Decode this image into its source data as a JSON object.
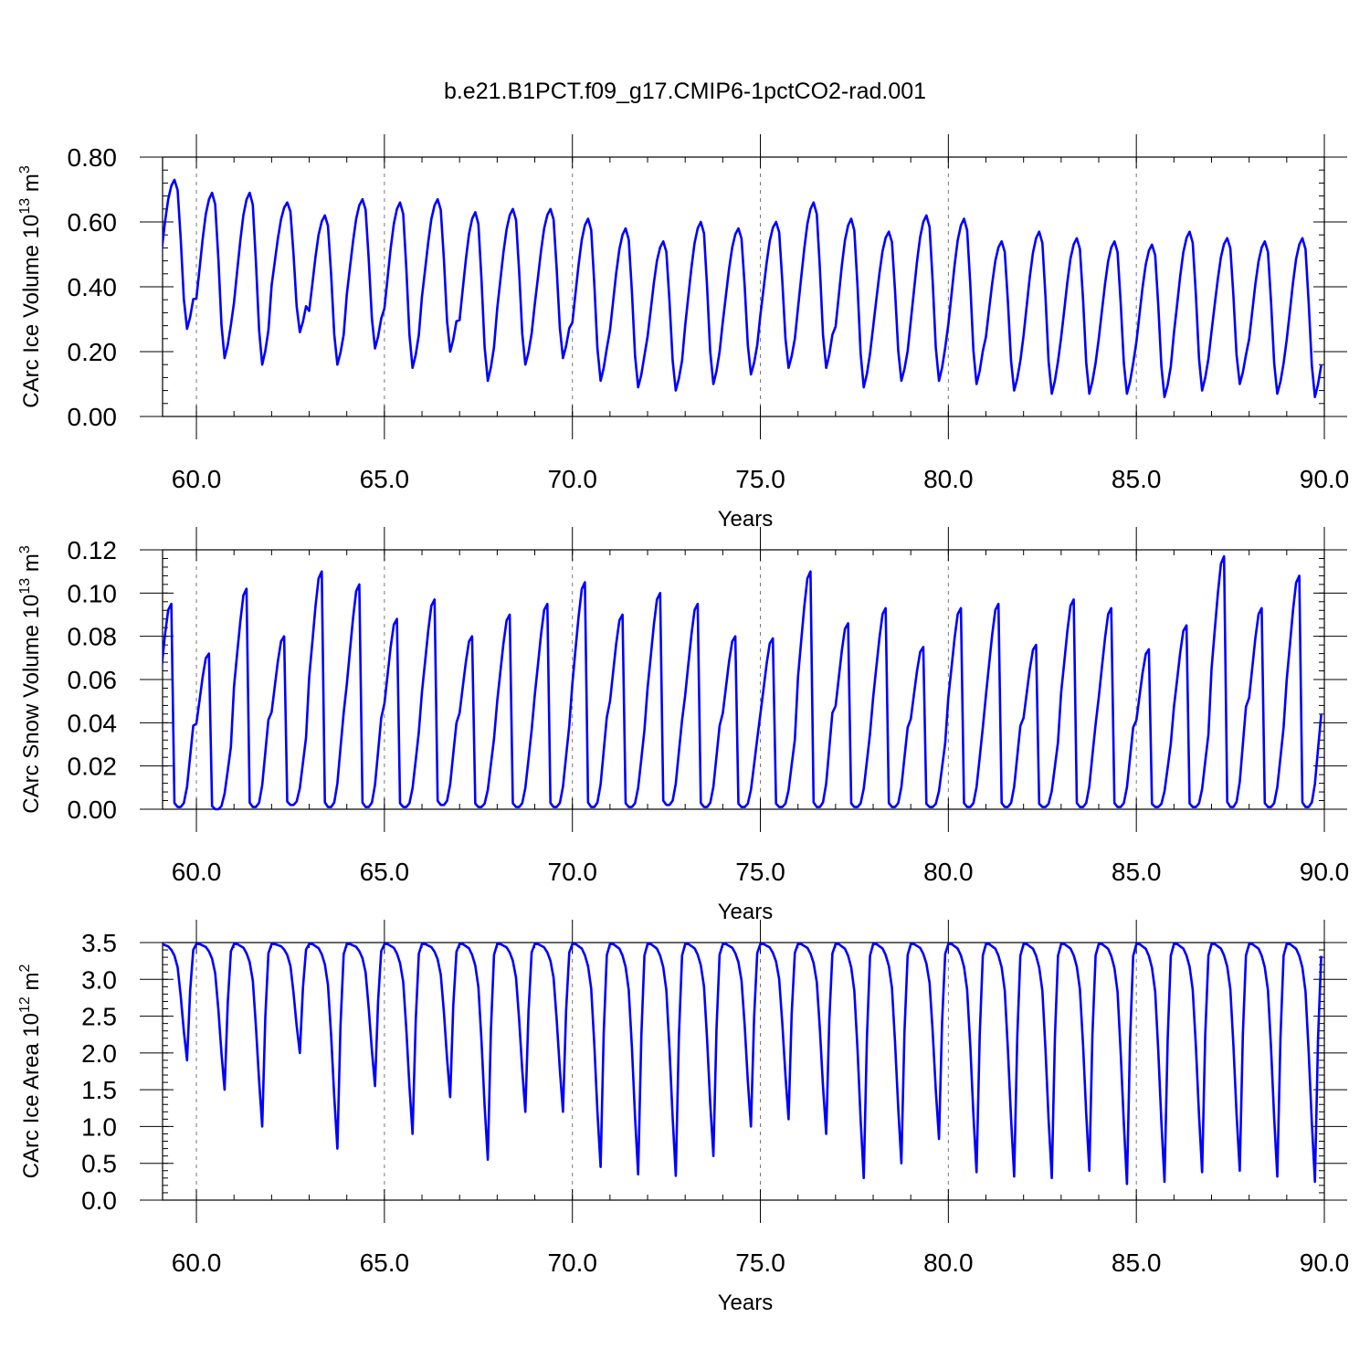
{
  "figure": {
    "title": "b.e21.B1PCT.f09_g17.CMIP6-1pctCO2-rad.001"
  },
  "chart_data": [
    {
      "type": "line",
      "xlabel": "Years",
      "ylabel_main": "CArc Ice Volume 10",
      "ylabel_exp": "13",
      "ylabel_unit": " m",
      "ylabel_unit_exp": "3",
      "xlim": [
        59.1,
        90.0
      ],
      "ylim": [
        0.0,
        0.8
      ],
      "xticks": [
        60,
        65,
        70,
        75,
        80,
        85,
        90
      ],
      "xtick_labels": [
        "60.0",
        "65.0",
        "70.0",
        "75.0",
        "80.0",
        "85.0",
        "90.0"
      ],
      "yticks": [
        0.0,
        0.2,
        0.4,
        0.6,
        0.8
      ],
      "ytick_labels": [
        "0.00",
        "0.20",
        "0.40",
        "0.60",
        "0.80"
      ],
      "grid": "dashed vertical at major x ticks",
      "series": [
        {
          "color": "#0000ff",
          "start_year": 59.0,
          "cycle": {
            "min_month": 9,
            "rise_fractions": [
              0.0,
              0.08,
              0.2,
              0.36,
              0.54,
              0.72,
              0.87,
              0.96,
              1.0,
              0.93,
              0.6,
              0.2
            ]
          },
          "annual_min": [
            0.27,
            0.18,
            0.16,
            0.26,
            0.16,
            0.21,
            0.15,
            0.2,
            0.11,
            0.16,
            0.18,
            0.11,
            0.09,
            0.08,
            0.1,
            0.13,
            0.15,
            0.15,
            0.09,
            0.11,
            0.11,
            0.1,
            0.08,
            0.07,
            0.07,
            0.07,
            0.06,
            0.08,
            0.1,
            0.07,
            0.06
          ],
          "annual_max": [
            0.73,
            0.69,
            0.69,
            0.66,
            0.62,
            0.67,
            0.66,
            0.67,
            0.63,
            0.64,
            0.64,
            0.61,
            0.58,
            0.54,
            0.6,
            0.58,
            0.6,
            0.66,
            0.61,
            0.57,
            0.62,
            0.61,
            0.54,
            0.57,
            0.55,
            0.54,
            0.53,
            0.57,
            0.55,
            0.54,
            0.55
          ]
        }
      ]
    },
    {
      "type": "line",
      "xlabel": "Years",
      "ylabel_main": "CArc Snow Volume 10",
      "ylabel_exp": "13",
      "ylabel_unit": " m",
      "ylabel_unit_exp": "3",
      "xlim": [
        59.1,
        90.0
      ],
      "ylim": [
        0.0,
        0.12
      ],
      "xticks": [
        60,
        65,
        70,
        75,
        80,
        85,
        90
      ],
      "xtick_labels": [
        "60.0",
        "65.0",
        "70.0",
        "75.0",
        "80.0",
        "85.0",
        "90.0"
      ],
      "yticks": [
        0.0,
        0.02,
        0.04,
        0.06,
        0.08,
        0.1,
        0.12
      ],
      "ytick_labels": [
        "0.00",
        "0.02",
        "0.04",
        "0.06",
        "0.08",
        "0.10",
        "0.12"
      ],
      "grid": "dashed vertical at major x ticks",
      "series": [
        {
          "color": "#0000ff",
          "start_year": 59.0,
          "cycle": {
            "peak_month": 4,
            "shape": [
              0.55,
              0.7,
              0.85,
              0.97,
              1.0,
              0.02,
              0.0,
              0.0,
              0.02,
              0.1,
              0.25,
              0.4
            ]
          },
          "annual_min": [
            0.001,
            0.0,
            0.001,
            0.002,
            0.001,
            0.001,
            0.001,
            0.002,
            0.001,
            0.001,
            0.001,
            0.001,
            0.001,
            0.002,
            0.001,
            0.001,
            0.001,
            0.001,
            0.001,
            0.001,
            0.001,
            0.001,
            0.001,
            0.001,
            0.001,
            0.001,
            0.001,
            0.001,
            0.001,
            0.001,
            0.001
          ],
          "annual_max": [
            0.095,
            0.072,
            0.102,
            0.08,
            0.11,
            0.104,
            0.088,
            0.097,
            0.08,
            0.09,
            0.095,
            0.105,
            0.09,
            0.1,
            0.095,
            0.08,
            0.079,
            0.11,
            0.086,
            0.093,
            0.075,
            0.093,
            0.095,
            0.076,
            0.097,
            0.093,
            0.074,
            0.085,
            0.117,
            0.093,
            0.108
          ]
        }
      ]
    },
    {
      "type": "line",
      "xlabel": "Years",
      "ylabel_main": "CArc Ice Area 10",
      "ylabel_exp": "12",
      "ylabel_unit": " m",
      "ylabel_unit_exp": "2",
      "xlim": [
        59.1,
        90.0
      ],
      "ylim": [
        0.0,
        3.5
      ],
      "xticks": [
        60,
        65,
        70,
        75,
        80,
        85,
        90
      ],
      "xtick_labels": [
        "60.0",
        "65.0",
        "70.0",
        "75.0",
        "80.0",
        "85.0",
        "90.0"
      ],
      "yticks": [
        0.0,
        0.5,
        1.0,
        1.5,
        2.0,
        2.5,
        3.0,
        3.5
      ],
      "ytick_labels": [
        "0.0",
        "0.5",
        "1.0",
        "1.5",
        "2.0",
        "2.5",
        "3.0",
        "3.5"
      ],
      "grid": "dashed vertical at major x ticks",
      "series": [
        {
          "color": "#0000ff",
          "start_year": 59.0,
          "cycle": {
            "min_month": 9,
            "shape": [
              1.0,
              1.0,
              0.99,
              0.98,
              0.95,
              0.9,
              0.8,
              0.55,
              0.25,
              0.0,
              0.6,
              0.95
            ]
          },
          "annual_min": [
            1.9,
            1.5,
            1.0,
            2.0,
            0.7,
            1.55,
            0.9,
            1.4,
            0.55,
            1.2,
            1.2,
            0.45,
            0.35,
            0.33,
            0.6,
            1.0,
            1.1,
            0.9,
            0.3,
            0.5,
            0.83,
            0.38,
            0.32,
            0.3,
            0.4,
            0.22,
            0.25,
            0.38,
            0.4,
            0.32,
            0.25
          ],
          "annual_max": [
            3.48,
            3.48,
            3.48,
            3.48,
            3.48,
            3.48,
            3.48,
            3.48,
            3.48,
            3.48,
            3.48,
            3.48,
            3.48,
            3.48,
            3.48,
            3.48,
            3.48,
            3.48,
            3.48,
            3.48,
            3.48,
            3.48,
            3.48,
            3.48,
            3.48,
            3.48,
            3.48,
            3.48,
            3.48,
            3.48,
            3.48
          ]
        }
      ]
    }
  ]
}
